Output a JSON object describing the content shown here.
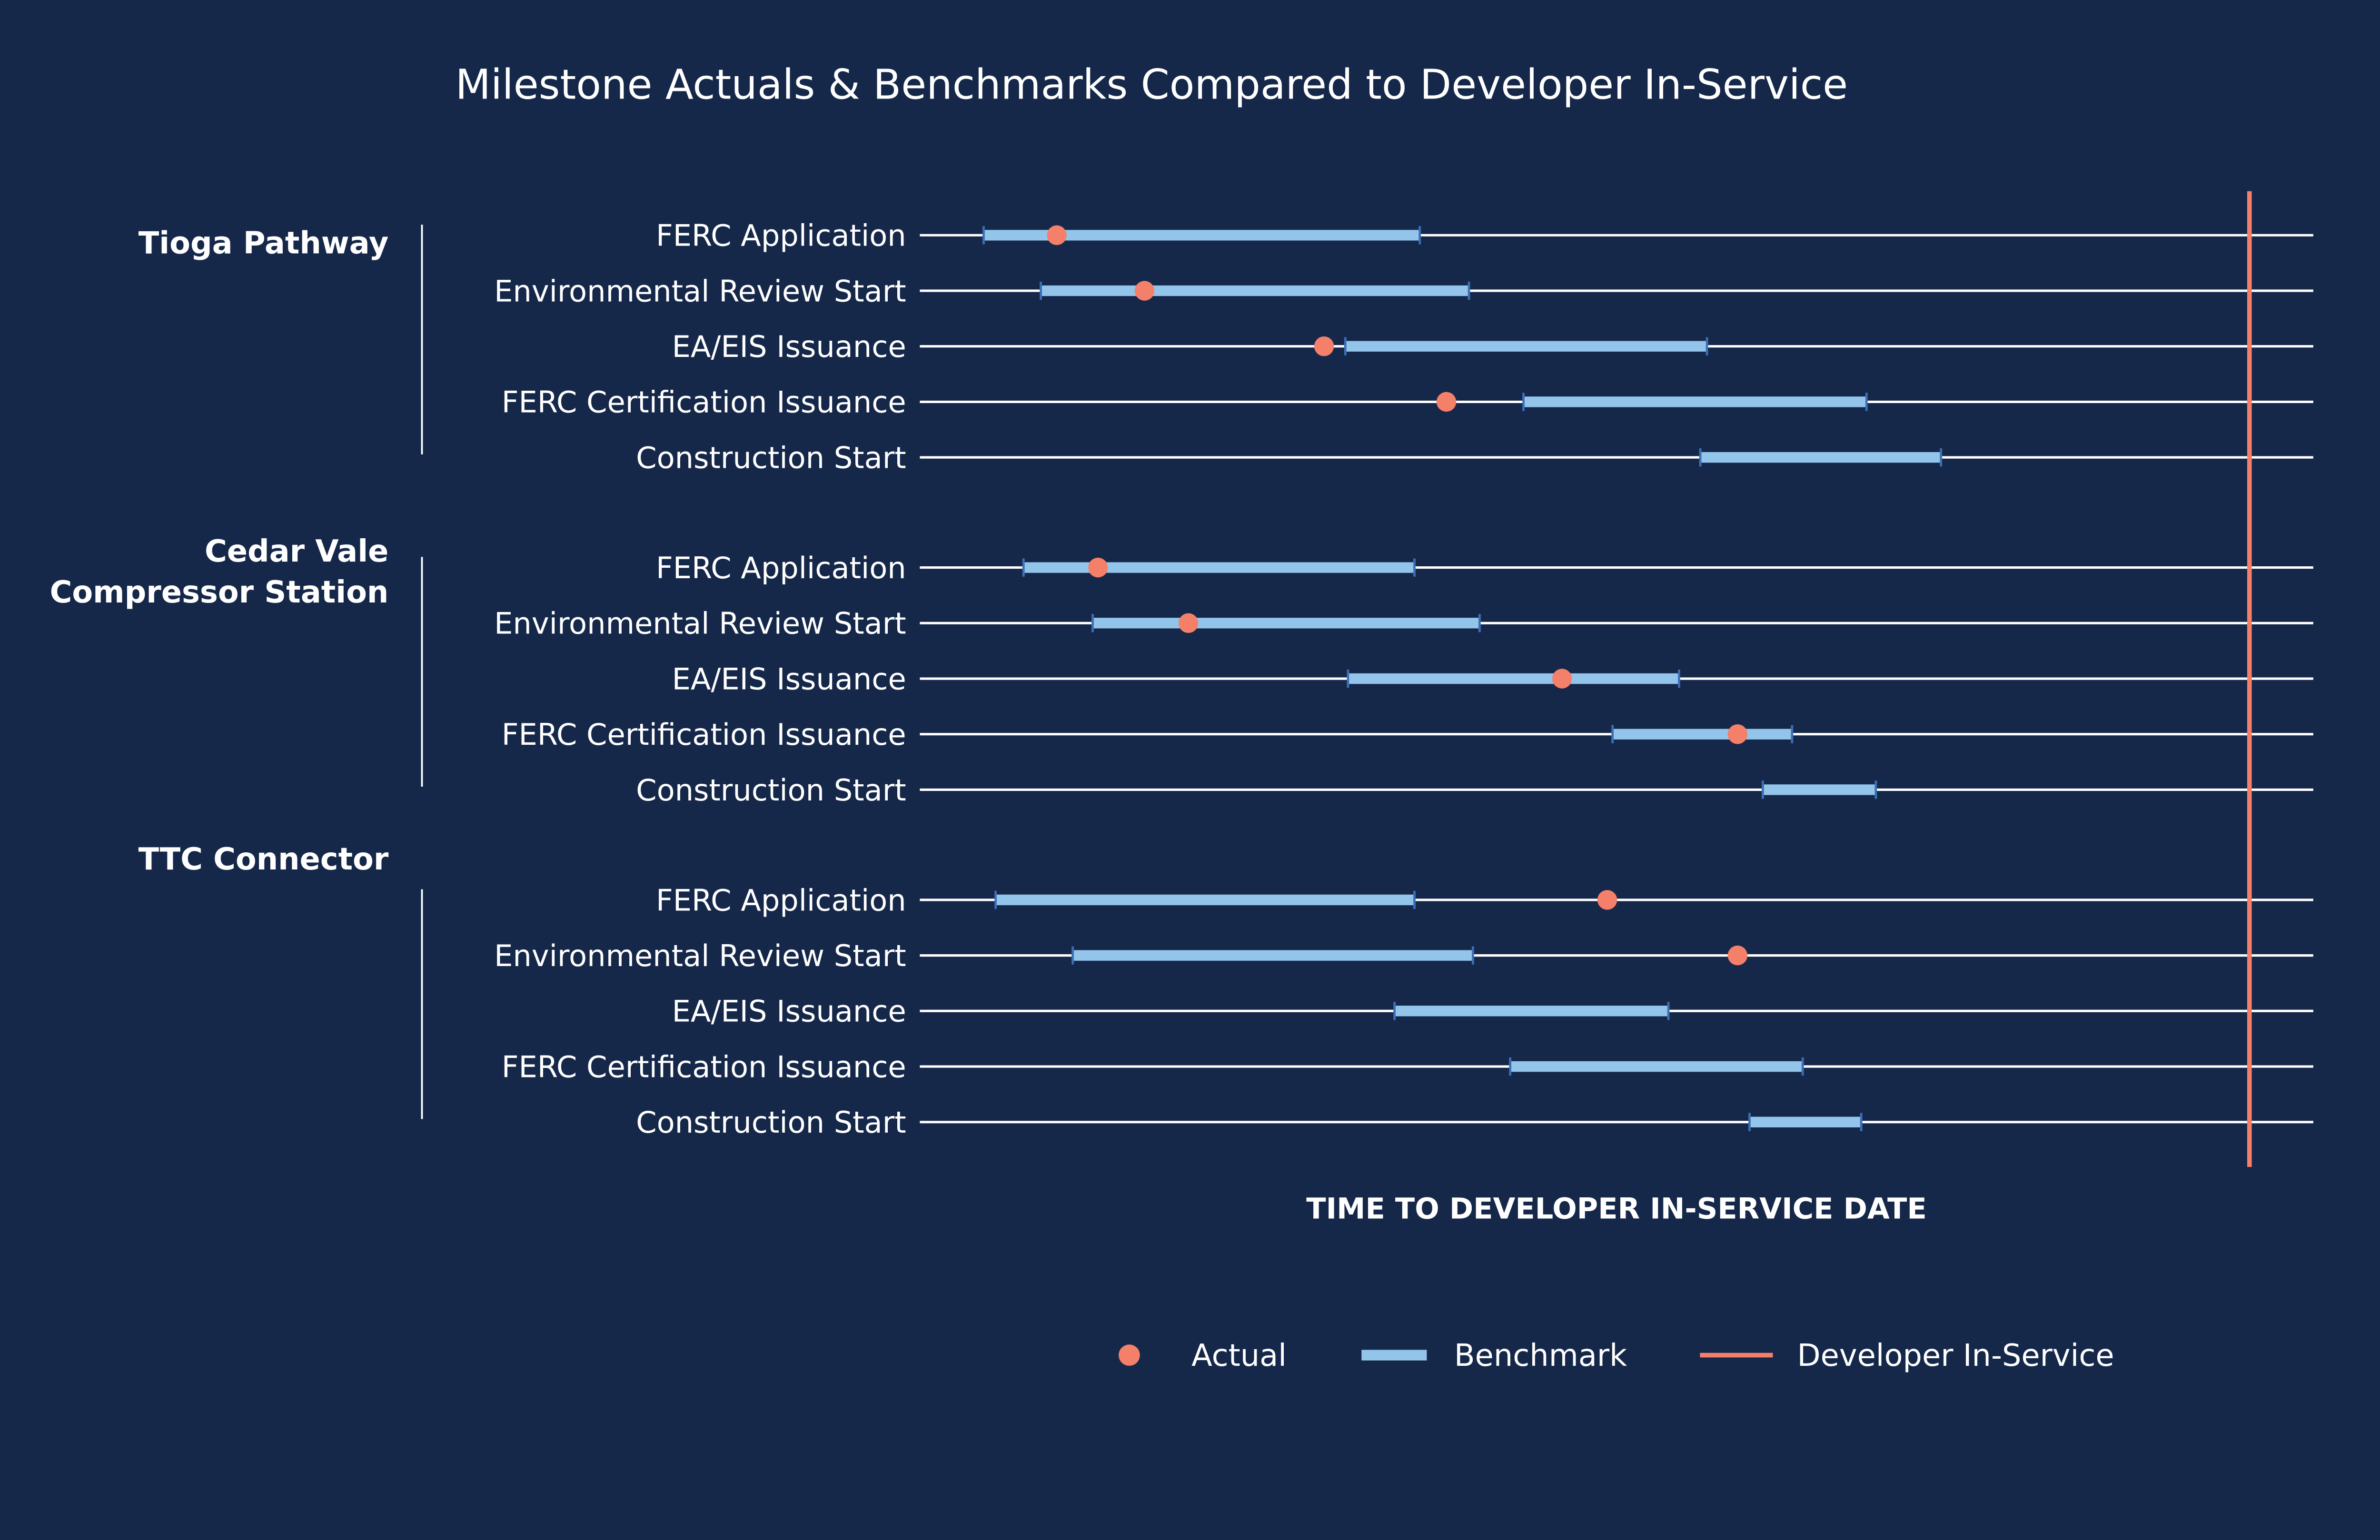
{
  "chart_data": {
    "type": "range-dot",
    "title": "Milestone Actuals & Benchmarks Compared to Developer In-Service",
    "xlabel": "TIME TO DEVELOPER IN-SERVICE DATE",
    "x_units": "relative time (developer in-service = 100)",
    "xlim": [
      0,
      104.8
    ],
    "in_service": 100,
    "grid": false,
    "legend": {
      "placement": "bottom-right",
      "entries": [
        {
          "name": "Actual",
          "kind": "dot"
        },
        {
          "name": "Benchmark",
          "kind": "bar"
        },
        {
          "name": "Developer In-Service",
          "kind": "line"
        }
      ]
    },
    "colors": {
      "background": "#16284a",
      "actual": "#f4806a",
      "benchmark": "#93c5ea",
      "benchmark_cap": "#3d6fb5",
      "in_service": "#f4806a",
      "track": "#ffffff"
    },
    "groups": [
      {
        "name": [
          "Tioga Pathway"
        ],
        "milestones": [
          {
            "label": "FERC Application",
            "bench": [
              4.8,
              37.6
            ],
            "actual": 10.3
          },
          {
            "label": "Environmental Review Start",
            "bench": [
              9.1,
              41.3
            ],
            "actual": 16.9
          },
          {
            "label": "EA/EIS Issuance",
            "bench": [
              32.0,
              59.2
            ],
            "actual": 30.4
          },
          {
            "label": "FERC Certification Issuance",
            "bench": [
              45.4,
              71.2
            ],
            "actual": 39.6
          },
          {
            "label": "Construction Start",
            "bench": [
              58.7,
              76.8
            ],
            "actual": null
          }
        ]
      },
      {
        "name": [
          "Cedar Vale",
          "Compressor Station"
        ],
        "milestones": [
          {
            "label": "FERC Application",
            "bench": [
              7.8,
              37.2
            ],
            "actual": 13.4
          },
          {
            "label": "Environmental Review Start",
            "bench": [
              13.0,
              42.1
            ],
            "actual": 20.2
          },
          {
            "label": "EA/EIS Issuance",
            "bench": [
              32.2,
              57.1
            ],
            "actual": 48.3
          },
          {
            "label": "FERC Certification Issuance",
            "bench": [
              52.1,
              65.6
            ],
            "actual": 61.5
          },
          {
            "label": "Construction Start",
            "bench": [
              63.4,
              71.9
            ],
            "actual": null
          }
        ]
      },
      {
        "name": [
          "TTC Connector"
        ],
        "milestones": [
          {
            "label": "FERC Application",
            "bench": [
              5.7,
              37.2
            ],
            "actual": 51.7
          },
          {
            "label": "Environmental Review Start",
            "bench": [
              11.5,
              41.6
            ],
            "actual": 61.5
          },
          {
            "label": "EA/EIS Issuance",
            "bench": [
              35.7,
              56.3
            ],
            "actual": null
          },
          {
            "label": "FERC Certification Issuance",
            "bench": [
              44.4,
              66.4
            ],
            "actual": null
          },
          {
            "label": "Construction Start",
            "bench": [
              62.4,
              70.8
            ],
            "actual": null
          }
        ]
      }
    ]
  }
}
